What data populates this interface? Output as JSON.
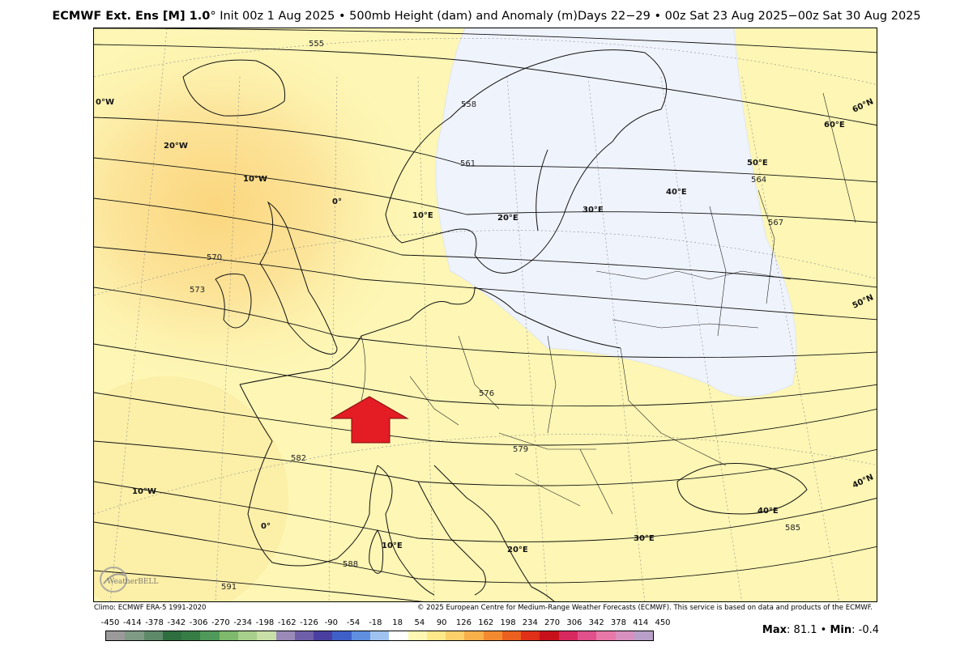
{
  "header": {
    "model": "ECMWF Ext. Ens [M] 1.0",
    "deg": "°",
    "init": " Init 00z 1 Aug 2025 ",
    "bullet": "•",
    "field": " 500mb Height (dam) and Anomaly (m)",
    "days": "Days 22−29 ",
    "valid": " 00z Sat 23 Aug 2025−00z Sat 30 Aug 2025"
  },
  "map": {
    "lon_labels": [
      "0°W",
      "20°W",
      "10°W",
      "0°",
      "10°E",
      "20°E",
      "30°E",
      "40°E",
      "50°E",
      "60°E",
      "10°W",
      "0°",
      "10°E",
      "20°E",
      "30°E",
      "40°E"
    ],
    "lat_labels": [
      "60°N",
      "50°N",
      "40°N"
    ],
    "contour_labels": [
      "555",
      "558",
      "561",
      "564",
      "567",
      "570",
      "573",
      "576",
      "579",
      "582",
      "585",
      "588",
      "591"
    ],
    "arrow_color": "#e41c23",
    "cold_anomaly_color": "#eff3fc",
    "warm_anomaly_color": "#fce48c"
  },
  "logo": {
    "text": "WeatherBELL"
  },
  "footer": {
    "climo": "Climo: ECMWF ERA-5 1991-2020",
    "copyright": "© 2025 European Centre for Medium-Range Weather Forecasts (ECMWF). This service is based on data and products of the ECMWF."
  },
  "colorbar": {
    "ticks": [
      "-450",
      "-414",
      "-378",
      "-342",
      "-306",
      "-270",
      "-234",
      "-198",
      "-162",
      "-126",
      "-90",
      "-54",
      "-18",
      "18",
      "54",
      "90",
      "126",
      "162",
      "198",
      "234",
      "270",
      "306",
      "342",
      "378",
      "414",
      "450"
    ],
    "colors": [
      "#9a9a9a",
      "#7f9a85",
      "#5f8a6a",
      "#2f6f3f",
      "#357d45",
      "#4f9a5a",
      "#7fb96b",
      "#a8d08a",
      "#c9dfa8",
      "#9a8ab8",
      "#6f5fa8",
      "#4a3fa0",
      "#3f5fc8",
      "#5f8fe0",
      "#9fc3f0",
      "#ffffff",
      "#fff8b4",
      "#fde88a",
      "#fbd06a",
      "#f8b04a",
      "#f48a30",
      "#ec6020",
      "#e03018",
      "#c8101a",
      "#d82860",
      "#e0508a",
      "#e878a8",
      "#d890c0",
      "#b8a0c8"
    ]
  },
  "stats": {
    "max_label": "Max",
    "max_value": "81.1",
    "sep": "•",
    "min_label": "Min",
    "min_value": "-0.4"
  }
}
